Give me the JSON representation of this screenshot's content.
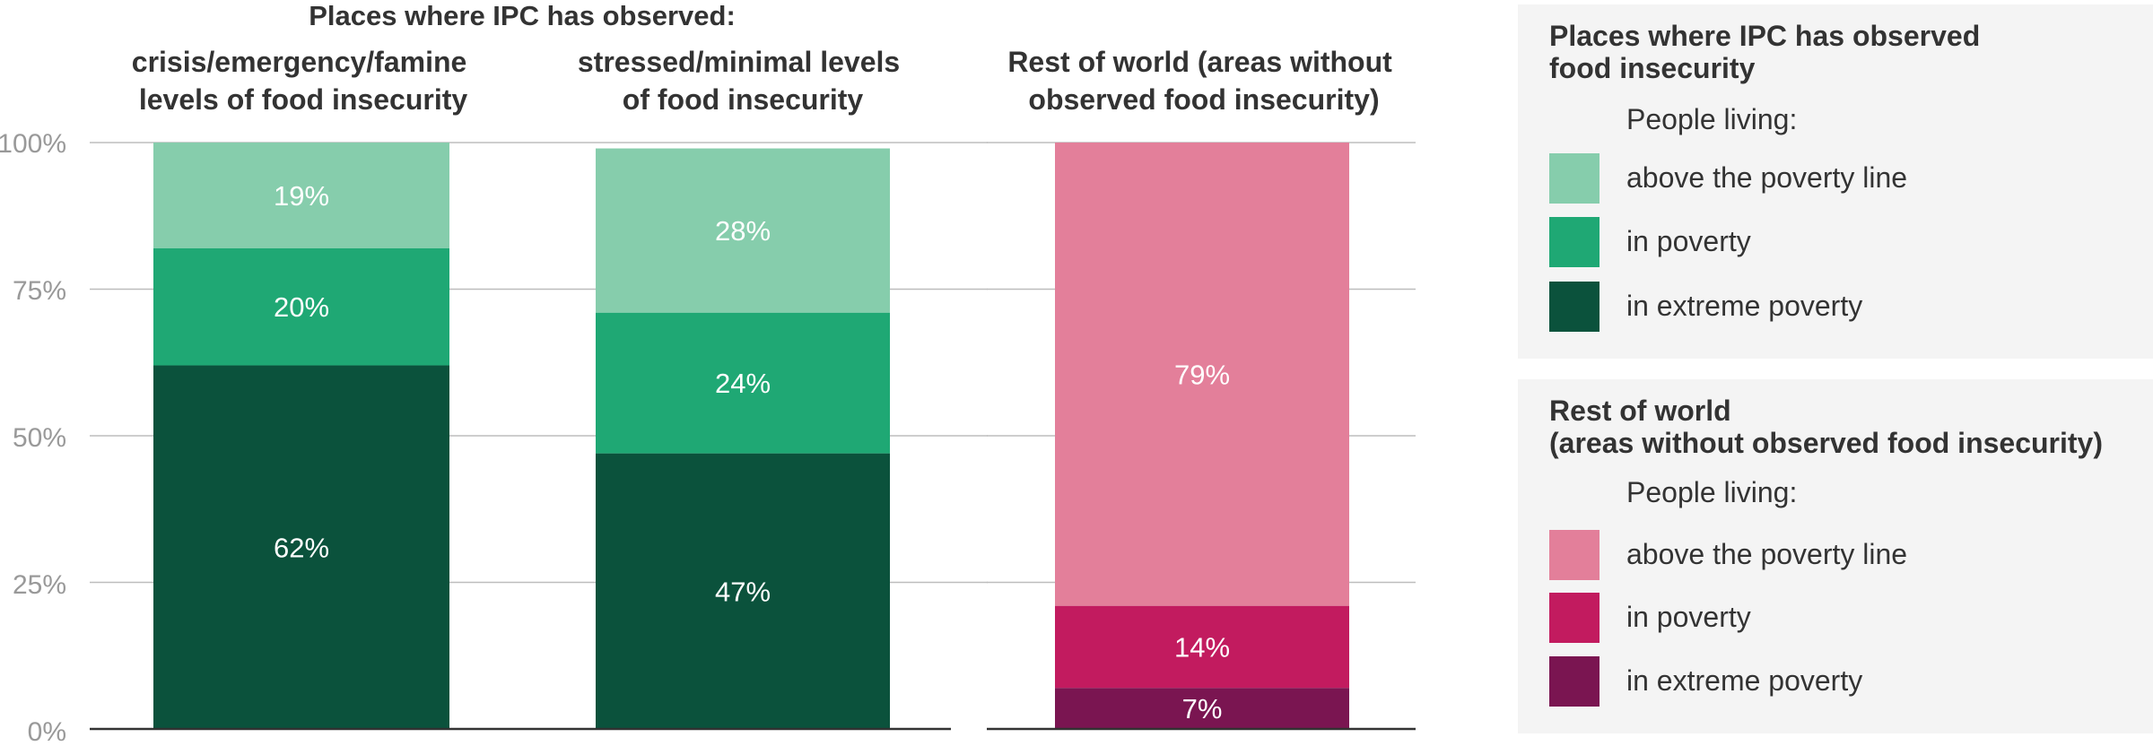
{
  "chart_data": {
    "type": "bar",
    "stacked": true,
    "super_title": "Places where IPC has observed:",
    "categories": [
      [
        "crisis/emergency/famine",
        "levels of food insecurity"
      ],
      [
        "stressed/minimal levels",
        "of food insecurity"
      ],
      [
        "Rest of world (areas without",
        "observed food insecurity)"
      ]
    ],
    "y_ticks": [
      "100%",
      "75%",
      "50%",
      "25%",
      "0%"
    ],
    "ylim": [
      0,
      100
    ],
    "grid": true,
    "bars": [
      {
        "segments": [
          {
            "key": "extreme",
            "value": 62,
            "label": "62%",
            "color": "#0b523c"
          },
          {
            "key": "poverty",
            "value": 20,
            "label": "20%",
            "color": "#1fa874"
          },
          {
            "key": "above",
            "value": 19,
            "label": "19%",
            "color": "#86cdac"
          }
        ]
      },
      {
        "segments": [
          {
            "key": "extreme",
            "value": 47,
            "label": "47%",
            "color": "#0b523c"
          },
          {
            "key": "poverty",
            "value": 24,
            "label": "24%",
            "color": "#1fa874"
          },
          {
            "key": "above",
            "value": 28,
            "label": "28%",
            "color": "#86cdac"
          }
        ]
      },
      {
        "segments": [
          {
            "key": "extreme",
            "value": 7,
            "label": "7%",
            "color": "#7a1551"
          },
          {
            "key": "poverty",
            "value": 14,
            "label": "14%",
            "color": "#c21b5f"
          },
          {
            "key": "above",
            "value": 79,
            "label": "79%",
            "color": "#e37f9a"
          }
        ]
      }
    ]
  },
  "legend": {
    "groups": [
      {
        "title_lines": [
          "Places where IPC has observed",
          "food insecurity"
        ],
        "subtitle": "People living:",
        "items": [
          {
            "label": "above the poverty line",
            "color": "#86cdac"
          },
          {
            "label": "in poverty",
            "color": "#1fa874"
          },
          {
            "label": "in extreme poverty",
            "color": "#0b523c"
          }
        ]
      },
      {
        "title_lines": [
          "Rest of world",
          "(areas without observed food insecurity)"
        ],
        "subtitle": "People living:",
        "items": [
          {
            "label": "above the poverty line",
            "color": "#e37f9a"
          },
          {
            "label": "in poverty",
            "color": "#c21b5f"
          },
          {
            "label": "in extreme poverty",
            "color": "#7a1551"
          }
        ]
      }
    ]
  }
}
